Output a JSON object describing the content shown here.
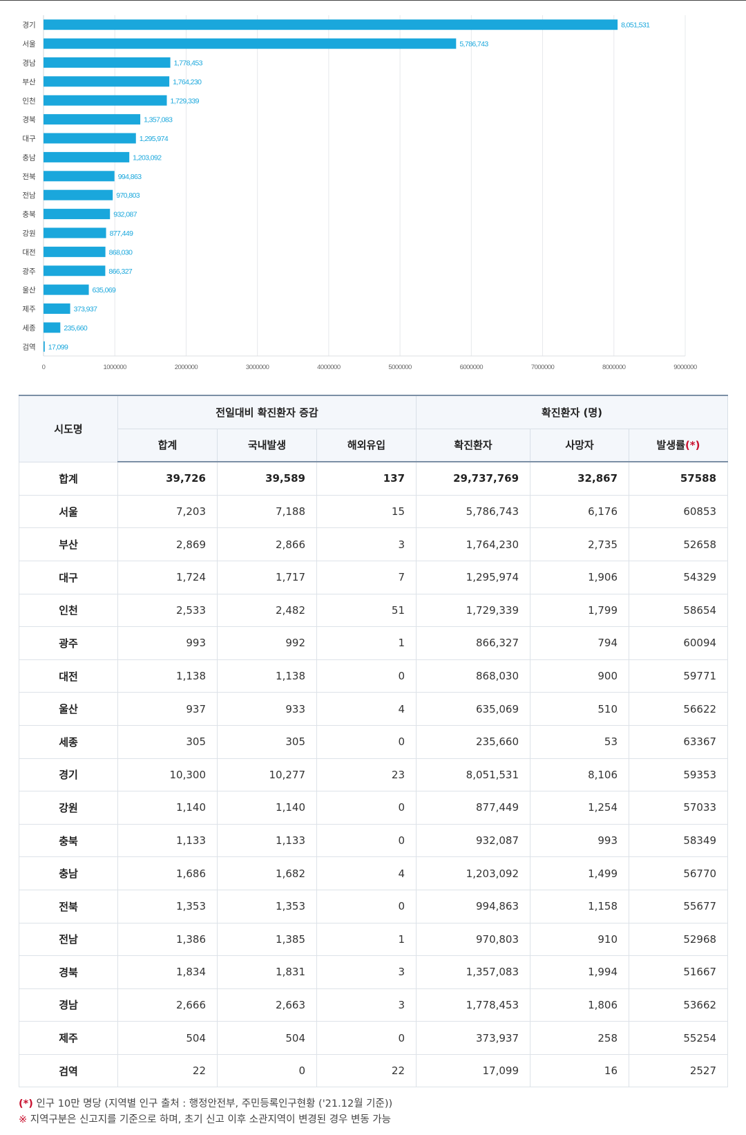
{
  "chart_data": {
    "type": "bar",
    "orientation": "horizontal",
    "categories": [
      "경기",
      "서울",
      "경남",
      "부산",
      "인천",
      "경북",
      "대구",
      "충남",
      "전북",
      "전남",
      "충북",
      "강원",
      "대전",
      "광주",
      "울산",
      "제주",
      "세종",
      "검역"
    ],
    "values": [
      8051531,
      5786743,
      1778453,
      1764230,
      1729339,
      1357083,
      1295974,
      1203092,
      994863,
      970803,
      932087,
      877449,
      868030,
      866327,
      635069,
      373937,
      235660,
      17099
    ],
    "value_labels": [
      "8,051,531",
      "5,786,743",
      "1,778,453",
      "1,764,230",
      "1,729,339",
      "1,357,083",
      "1,295,974",
      "1,203,092",
      "994,863",
      "970,803",
      "932,087",
      "877,449",
      "868,030",
      "866,327",
      "635,069",
      "373,937",
      "235,660",
      "17,099"
    ],
    "xlim": [
      0,
      9000000
    ],
    "xticks": [
      0,
      1000000,
      2000000,
      3000000,
      4000000,
      5000000,
      6000000,
      7000000,
      8000000,
      9000000
    ],
    "xtick_labels": [
      "0",
      "1000000",
      "2000000",
      "3000000",
      "4000000",
      "5000000",
      "6000000",
      "7000000",
      "8000000",
      "9000000"
    ],
    "grid": true,
    "bar_color": "#1aa7dc",
    "label_color": "#1aa7dc"
  },
  "table": {
    "header": {
      "region": "시도명",
      "group_change": "전일대비 확진환자 증감",
      "group_total": "확진환자 (명)",
      "sum": "합계",
      "domestic": "국내발생",
      "overseas": "해외유입",
      "confirmed": "확진환자",
      "deaths": "사망자",
      "rate": "발생률",
      "rate_mark": "(*)"
    },
    "total": {
      "region": "합계",
      "sum": "39,726",
      "domestic": "39,589",
      "overseas": "137",
      "confirmed": "29,737,769",
      "deaths": "32,867",
      "rate": "57588"
    },
    "rows": [
      {
        "region": "서울",
        "sum": "7,203",
        "domestic": "7,188",
        "overseas": "15",
        "confirmed": "5,786,743",
        "deaths": "6,176",
        "rate": "60853"
      },
      {
        "region": "부산",
        "sum": "2,869",
        "domestic": "2,866",
        "overseas": "3",
        "confirmed": "1,764,230",
        "deaths": "2,735",
        "rate": "52658"
      },
      {
        "region": "대구",
        "sum": "1,724",
        "domestic": "1,717",
        "overseas": "7",
        "confirmed": "1,295,974",
        "deaths": "1,906",
        "rate": "54329"
      },
      {
        "region": "인천",
        "sum": "2,533",
        "domestic": "2,482",
        "overseas": "51",
        "confirmed": "1,729,339",
        "deaths": "1,799",
        "rate": "58654"
      },
      {
        "region": "광주",
        "sum": "993",
        "domestic": "992",
        "overseas": "1",
        "confirmed": "866,327",
        "deaths": "794",
        "rate": "60094"
      },
      {
        "region": "대전",
        "sum": "1,138",
        "domestic": "1,138",
        "overseas": "0",
        "confirmed": "868,030",
        "deaths": "900",
        "rate": "59771"
      },
      {
        "region": "울산",
        "sum": "937",
        "domestic": "933",
        "overseas": "4",
        "confirmed": "635,069",
        "deaths": "510",
        "rate": "56622"
      },
      {
        "region": "세종",
        "sum": "305",
        "domestic": "305",
        "overseas": "0",
        "confirmed": "235,660",
        "deaths": "53",
        "rate": "63367"
      },
      {
        "region": "경기",
        "sum": "10,300",
        "domestic": "10,277",
        "overseas": "23",
        "confirmed": "8,051,531",
        "deaths": "8,106",
        "rate": "59353"
      },
      {
        "region": "강원",
        "sum": "1,140",
        "domestic": "1,140",
        "overseas": "0",
        "confirmed": "877,449",
        "deaths": "1,254",
        "rate": "57033"
      },
      {
        "region": "충북",
        "sum": "1,133",
        "domestic": "1,133",
        "overseas": "0",
        "confirmed": "932,087",
        "deaths": "993",
        "rate": "58349"
      },
      {
        "region": "충남",
        "sum": "1,686",
        "domestic": "1,682",
        "overseas": "4",
        "confirmed": "1,203,092",
        "deaths": "1,499",
        "rate": "56770"
      },
      {
        "region": "전북",
        "sum": "1,353",
        "domestic": "1,353",
        "overseas": "0",
        "confirmed": "994,863",
        "deaths": "1,158",
        "rate": "55677"
      },
      {
        "region": "전남",
        "sum": "1,386",
        "domestic": "1,385",
        "overseas": "1",
        "confirmed": "970,803",
        "deaths": "910",
        "rate": "52968"
      },
      {
        "region": "경북",
        "sum": "1,834",
        "domestic": "1,831",
        "overseas": "3",
        "confirmed": "1,357,083",
        "deaths": "1,994",
        "rate": "51667"
      },
      {
        "region": "경남",
        "sum": "2,666",
        "domestic": "2,663",
        "overseas": "3",
        "confirmed": "1,778,453",
        "deaths": "1,806",
        "rate": "53662"
      },
      {
        "region": "제주",
        "sum": "504",
        "domestic": "504",
        "overseas": "0",
        "confirmed": "373,937",
        "deaths": "258",
        "rate": "55254"
      },
      {
        "region": "검역",
        "sum": "22",
        "domestic": "0",
        "overseas": "22",
        "confirmed": "17,099",
        "deaths": "16",
        "rate": "2527"
      }
    ]
  },
  "notes": {
    "note1_mark": "(*)",
    "note1_text": " 인구 10만 명당 (지역별 인구 출처 : 행정안전부, 주민등록인구현황 ('21.12월 기준))",
    "note2_mark": "※",
    "note2_text": " 지역구분은 신고지를 기준으로 하며, 초기 신고 이후 소관지역이 변경된 경우 변동 가능"
  }
}
